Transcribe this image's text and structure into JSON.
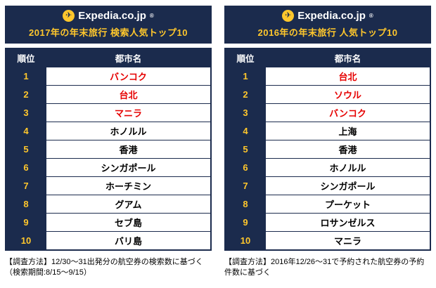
{
  "brand": {
    "name": "Expedia.co.jp",
    "airplane_icon": "✈",
    "reg_mark": "®"
  },
  "colors": {
    "navy": "#1b2b4d",
    "yellow": "#ffc72c",
    "highlight_red": "#e60000"
  },
  "chart_data": [
    {
      "type": "table",
      "title": "2017年の年末旅行 検索人気トップ10",
      "columns": [
        "順位",
        "都市名"
      ],
      "rows": [
        [
          "1",
          "バンコク"
        ],
        [
          "2",
          "台北"
        ],
        [
          "3",
          "マニラ"
        ],
        [
          "4",
          "ホノルル"
        ],
        [
          "5",
          "香港"
        ],
        [
          "6",
          "シンガポール"
        ],
        [
          "7",
          "ホーチミン"
        ],
        [
          "8",
          "グアム"
        ],
        [
          "9",
          "セブ島"
        ],
        [
          "10",
          "バリ島"
        ]
      ],
      "highlight_rows": [
        0,
        1,
        2
      ],
      "highlight_color": "#e60000",
      "footnote": "【調査方法】12/30〜31出発分の航空券の検索数に基づく（検索期間:8/15〜9/15）"
    },
    {
      "type": "table",
      "title": "2016年の年末旅行 人気トップ10",
      "columns": [
        "順位",
        "都市名"
      ],
      "rows": [
        [
          "1",
          "台北"
        ],
        [
          "2",
          "ソウル"
        ],
        [
          "3",
          "バンコク"
        ],
        [
          "4",
          "上海"
        ],
        [
          "5",
          "香港"
        ],
        [
          "6",
          "ホノルル"
        ],
        [
          "7",
          "シンガポール"
        ],
        [
          "8",
          "プーケット"
        ],
        [
          "9",
          "ロサンゼルス"
        ],
        [
          "10",
          "マニラ"
        ]
      ],
      "highlight_rows": [
        0,
        1,
        2
      ],
      "highlight_color": "#e60000",
      "footnote": "【調査方法】2016年12/26〜31で予約された航空券の予約件数に基づく"
    }
  ]
}
